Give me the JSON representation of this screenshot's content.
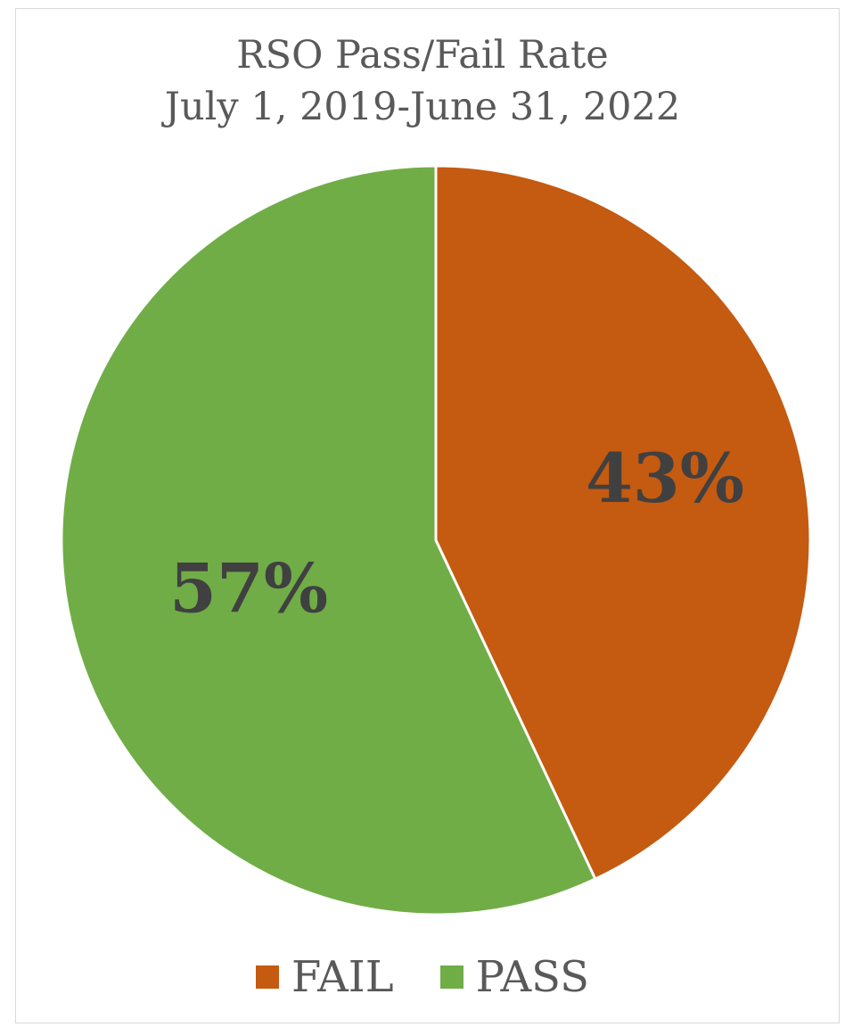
{
  "chart_data": {
    "type": "pie",
    "title": [
      "RSO Pass/Fail Rate",
      "July 1, 2019-June 31, 2022"
    ],
    "categories": [
      "FAIL",
      "PASS"
    ],
    "values": [
      43,
      57
    ],
    "data_labels": [
      "43%",
      "57%"
    ],
    "colors": [
      "#c55a11",
      "#70ad47"
    ],
    "label_color": "#404040",
    "legend": {
      "position": "bottom",
      "entries": [
        "FAIL",
        "PASS"
      ]
    }
  }
}
